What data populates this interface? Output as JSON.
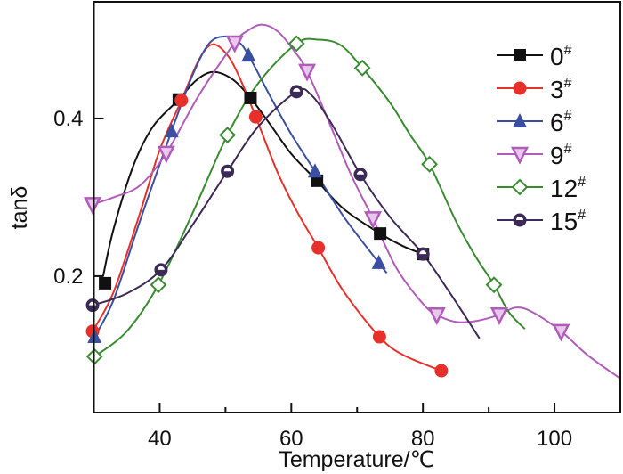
{
  "chart_data": {
    "type": "line",
    "xlabel": "Temperature/℃",
    "ylabel": "tanδ",
    "xlim": [
      30,
      110
    ],
    "ylim": [
      0.027,
      0.548
    ],
    "xticks": [
      40,
      60,
      80,
      100
    ],
    "yticks": [
      0.2,
      0.4
    ],
    "grid": false,
    "legend_placement": "top-right",
    "series": [
      {
        "name": "0",
        "sup": "#",
        "color": "#111111",
        "marker": "square",
        "points": [
          [
            31.7,
            0.191
          ],
          [
            42.9,
            0.424
          ],
          [
            53.8,
            0.426
          ],
          [
            63.9,
            0.321
          ],
          [
            73.5,
            0.254
          ],
          [
            80,
            0.228
          ]
        ],
        "curve": [
          [
            31.4,
            0.2
          ],
          [
            33,
            0.26
          ],
          [
            36,
            0.34
          ],
          [
            39,
            0.39
          ],
          [
            42.9,
            0.424
          ],
          [
            45.5,
            0.448
          ],
          [
            48.1,
            0.459
          ],
          [
            51,
            0.45
          ],
          [
            53.8,
            0.426
          ],
          [
            57,
            0.39
          ],
          [
            60,
            0.355
          ],
          [
            63.9,
            0.321
          ],
          [
            68,
            0.285
          ],
          [
            73.5,
            0.254
          ],
          [
            77,
            0.238
          ],
          [
            80,
            0.228
          ]
        ]
      },
      {
        "name": "3",
        "sup": "#",
        "color": "#e8302a",
        "marker": "circle",
        "points": [
          [
            29.8,
            0.13
          ],
          [
            43.3,
            0.423
          ],
          [
            54.6,
            0.402
          ],
          [
            64.1,
            0.236
          ],
          [
            73.4,
            0.123
          ],
          [
            82.8,
            0.08
          ]
        ],
        "curve": [
          [
            29.8,
            0.13
          ],
          [
            33,
            0.18
          ],
          [
            37,
            0.28
          ],
          [
            40,
            0.36
          ],
          [
            43.3,
            0.423
          ],
          [
            46,
            0.475
          ],
          [
            48.1,
            0.494
          ],
          [
            50.5,
            0.478
          ],
          [
            52.5,
            0.445
          ],
          [
            54.6,
            0.402
          ],
          [
            58,
            0.33
          ],
          [
            61,
            0.28
          ],
          [
            64.1,
            0.236
          ],
          [
            68,
            0.18
          ],
          [
            73.4,
            0.123
          ],
          [
            77,
            0.1
          ],
          [
            82.8,
            0.08
          ]
        ]
      },
      {
        "name": "6",
        "sup": "#",
        "color": "#3b4fa0",
        "marker": "triangle-up",
        "points": [
          [
            30.1,
            0.123
          ],
          [
            41.8,
            0.384
          ],
          [
            53.5,
            0.48
          ],
          [
            63.6,
            0.333
          ],
          [
            73.3,
            0.217
          ]
        ],
        "curve": [
          [
            30.1,
            0.123
          ],
          [
            33,
            0.17
          ],
          [
            37,
            0.27
          ],
          [
            41.8,
            0.384
          ],
          [
            45,
            0.455
          ],
          [
            47.5,
            0.495
          ],
          [
            49.9,
            0.504
          ],
          [
            52,
            0.497
          ],
          [
            53.5,
            0.48
          ],
          [
            57,
            0.425
          ],
          [
            60,
            0.38
          ],
          [
            63.6,
            0.333
          ],
          [
            68,
            0.275
          ],
          [
            73.3,
            0.217
          ],
          [
            74.5,
            0.204
          ]
        ]
      },
      {
        "name": "9",
        "sup": "#",
        "color": "#b05cb8",
        "marker": "triangle-down",
        "points": [
          [
            29.8,
            0.291
          ],
          [
            41,
            0.356
          ],
          [
            51.4,
            0.496
          ],
          [
            62.4,
            0.46
          ],
          [
            72.4,
            0.273
          ],
          [
            82.1,
            0.151
          ],
          [
            91.6,
            0.151
          ],
          [
            101,
            0.13
          ]
        ],
        "curve": [
          [
            29.8,
            0.291
          ],
          [
            33,
            0.3
          ],
          [
            37,
            0.315
          ],
          [
            41,
            0.356
          ],
          [
            46,
            0.43
          ],
          [
            51.4,
            0.496
          ],
          [
            53.5,
            0.512
          ],
          [
            55.6,
            0.519
          ],
          [
            58,
            0.51
          ],
          [
            60.5,
            0.485
          ],
          [
            62.4,
            0.46
          ],
          [
            66,
            0.39
          ],
          [
            69,
            0.33
          ],
          [
            72.4,
            0.273
          ],
          [
            76,
            0.21
          ],
          [
            80,
            0.165
          ],
          [
            82.1,
            0.151
          ],
          [
            85,
            0.142
          ],
          [
            88,
            0.143
          ],
          [
            91.6,
            0.151
          ],
          [
            94,
            0.16
          ],
          [
            96.5,
            0.155
          ],
          [
            101,
            0.13
          ],
          [
            105,
            0.1
          ],
          [
            110,
            0.07
          ]
        ]
      },
      {
        "name": "12",
        "sup": "#",
        "color": "#3a8a32",
        "marker": "diamond-open",
        "points": [
          [
            30.1,
            0.098
          ],
          [
            39.8,
            0.189
          ],
          [
            50.3,
            0.379
          ],
          [
            60.8,
            0.495
          ],
          [
            70.8,
            0.464
          ],
          [
            81,
            0.342
          ],
          [
            90.8,
            0.189
          ]
        ],
        "curve": [
          [
            30.1,
            0.098
          ],
          [
            35,
            0.13
          ],
          [
            39.8,
            0.189
          ],
          [
            45,
            0.28
          ],
          [
            50.3,
            0.379
          ],
          [
            55,
            0.445
          ],
          [
            60.8,
            0.495
          ],
          [
            64.1,
            0.5
          ],
          [
            67.5,
            0.493
          ],
          [
            70.8,
            0.464
          ],
          [
            75,
            0.42
          ],
          [
            78,
            0.38
          ],
          [
            81,
            0.342
          ],
          [
            85,
            0.27
          ],
          [
            88,
            0.225
          ],
          [
            90.8,
            0.189
          ],
          [
            93,
            0.155
          ],
          [
            95.5,
            0.133
          ]
        ]
      },
      {
        "name": "15",
        "sup": "#",
        "color": "#3a2a55",
        "marker": "circle-half",
        "points": [
          [
            29.8,
            0.163
          ],
          [
            40.2,
            0.208
          ],
          [
            50.3,
            0.333
          ],
          [
            60.8,
            0.434
          ],
          [
            70.5,
            0.329
          ],
          [
            80,
            0.228
          ]
        ],
        "curve": [
          [
            29.8,
            0.163
          ],
          [
            35,
            0.178
          ],
          [
            40.2,
            0.208
          ],
          [
            45,
            0.265
          ],
          [
            50.3,
            0.333
          ],
          [
            55,
            0.39
          ],
          [
            60.8,
            0.434
          ],
          [
            63,
            0.43
          ],
          [
            66,
            0.395
          ],
          [
            70.5,
            0.329
          ],
          [
            75,
            0.275
          ],
          [
            80,
            0.228
          ],
          [
            84,
            0.18
          ],
          [
            88.6,
            0.121
          ]
        ]
      }
    ]
  }
}
